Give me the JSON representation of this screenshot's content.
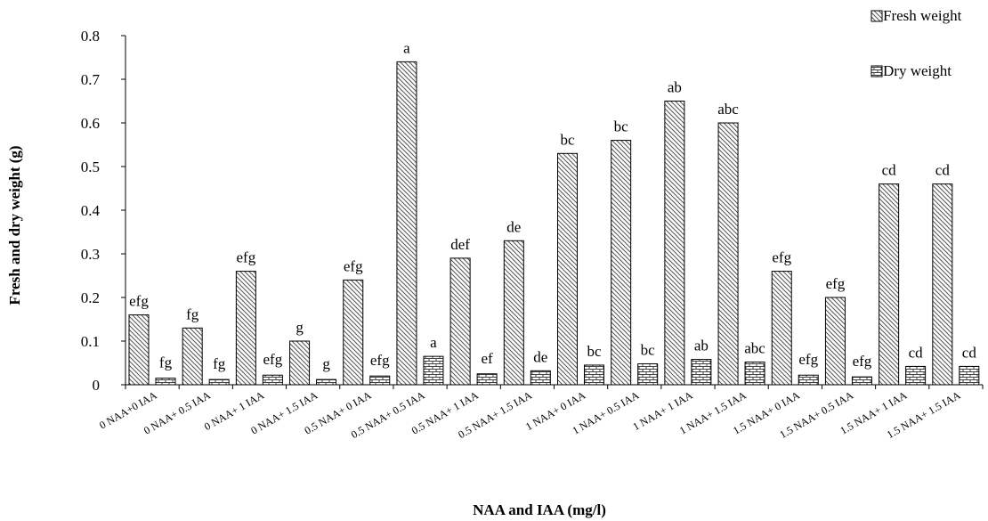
{
  "chart_data": {
    "type": "bar",
    "xlabel": "NAA and IAA (mg/l)",
    "ylabel": "Fresh and dry weight (g)",
    "ylim": [
      0,
      0.8
    ],
    "yticks": [
      "0",
      "0.1",
      "0.2",
      "0.3",
      "0.4",
      "0.5",
      "0.6",
      "0.7",
      "0.8"
    ],
    "categories": [
      "0 NAA+0 IAA",
      "0 NAA+ 0.5 IAA",
      "0 NAA+ 1 IAA",
      "0 NAA+ 1.5 IAA",
      "0.5 NAA+ 0 IAA",
      "0.5 NAA+ 0.5 IAA",
      "0.5 NAA+ 1 IAA",
      "0.5 NAA+ 1.5 IAA",
      "1 NAA+ 0 IAA",
      "1 NAA+ 0.5 IAA",
      "1 NAA+ 1 IAA",
      "1 NAA+ 1.5 IAA",
      "1.5 NAA+ 0 IAA",
      "1.5 NAA+ 0.5 IAA",
      "1.5 NAA+ 1 IAA",
      "1.5 NAA+ 1.5 IAA"
    ],
    "series": [
      {
        "name": "Fresh weight",
        "pattern": "diagonal-hatch",
        "values": [
          0.16,
          0.13,
          0.26,
          0.1,
          0.24,
          0.74,
          0.29,
          0.33,
          0.53,
          0.56,
          0.65,
          0.6,
          0.26,
          0.2,
          0.46,
          0.46
        ],
        "labels": [
          "efg",
          "fg",
          "efg",
          "g",
          "efg",
          "a",
          "def",
          "de",
          "bc",
          "bc",
          "ab",
          "abc",
          "efg",
          "efg",
          "cd",
          "cd"
        ]
      },
      {
        "name": "Dry weight",
        "pattern": "brick",
        "values": [
          0.015,
          0.012,
          0.022,
          0.012,
          0.02,
          0.065,
          0.025,
          0.032,
          0.045,
          0.048,
          0.058,
          0.052,
          0.022,
          0.018,
          0.042,
          0.042
        ],
        "labels": [
          "fg",
          "fg",
          "efg",
          "g",
          "efg",
          "a",
          "ef",
          "de",
          "bc",
          "bc",
          "ab",
          "abc",
          "efg",
          "efg",
          "cd",
          "cd"
        ]
      }
    ],
    "legend": "top-right",
    "grid": false
  }
}
